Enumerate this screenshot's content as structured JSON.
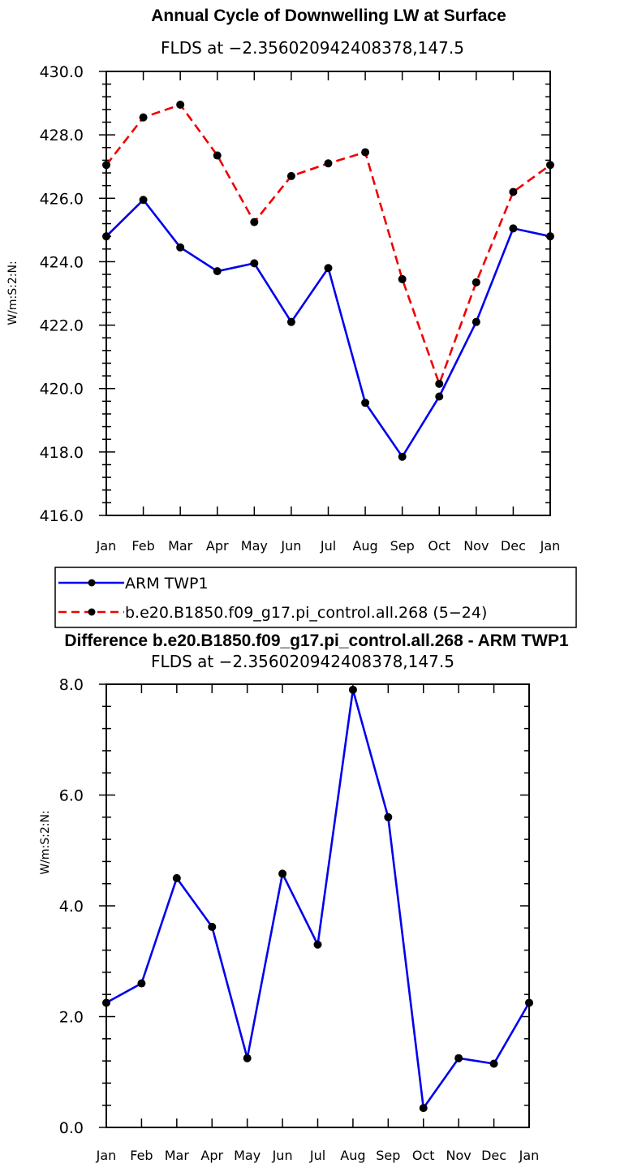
{
  "chart_data": [
    {
      "type": "line",
      "title": "Annual Cycle of Downwelling LW at Surface",
      "subtitle": "FLDS at −2.356020942408378,147.5",
      "ylabel": "W/m:S:2:N:",
      "xlabel": "",
      "ylim": [
        416.0,
        430.0
      ],
      "yticks": [
        "416.0",
        "418.0",
        "420.0",
        "422.0",
        "424.0",
        "426.0",
        "428.0",
        "430.0"
      ],
      "categories": [
        "Jan",
        "Feb",
        "Mar",
        "Apr",
        "May",
        "Jun",
        "Jul",
        "Aug",
        "Sep",
        "Oct",
        "Nov",
        "Dec",
        "Jan"
      ],
      "series": [
        {
          "name": "ARM TWP1",
          "color": "#0000ee",
          "style": "solid",
          "values": [
            424.8,
            425.95,
            424.45,
            423.7,
            423.95,
            422.1,
            423.8,
            419.55,
            417.85,
            419.75,
            422.1,
            425.05,
            424.8
          ]
        },
        {
          "name": "b.e20.B1850.f09_g17.pi_control.all.268 (5−24)",
          "color": "#ee0000",
          "style": "dashed",
          "values": [
            427.05,
            428.55,
            428.95,
            427.35,
            425.25,
            426.7,
            427.1,
            427.45,
            423.45,
            420.15,
            423.35,
            426.2,
            427.05
          ]
        }
      ],
      "legend": "below"
    },
    {
      "type": "line",
      "title": "Difference b.e20.B1850.f09_g17.pi_control.all.268 - ARM TWP1",
      "subtitle": "FLDS at −2.356020942408378,147.5",
      "ylabel": "W/m:S:2:N:",
      "xlabel": "",
      "ylim": [
        0.0,
        8.0
      ],
      "yticks": [
        "0.0",
        "2.0",
        "4.0",
        "6.0",
        "8.0"
      ],
      "categories": [
        "Jan",
        "Feb",
        "Mar",
        "Apr",
        "May",
        "Jun",
        "Jul",
        "Aug",
        "Sep",
        "Oct",
        "Nov",
        "Dec",
        "Jan"
      ],
      "series": [
        {
          "name": "Difference",
          "color": "#0000ee",
          "style": "solid",
          "values": [
            2.25,
            2.6,
            4.5,
            3.62,
            1.25,
            4.58,
            3.3,
            7.9,
            5.6,
            0.35,
            1.25,
            1.15,
            2.25
          ]
        }
      ]
    }
  ]
}
